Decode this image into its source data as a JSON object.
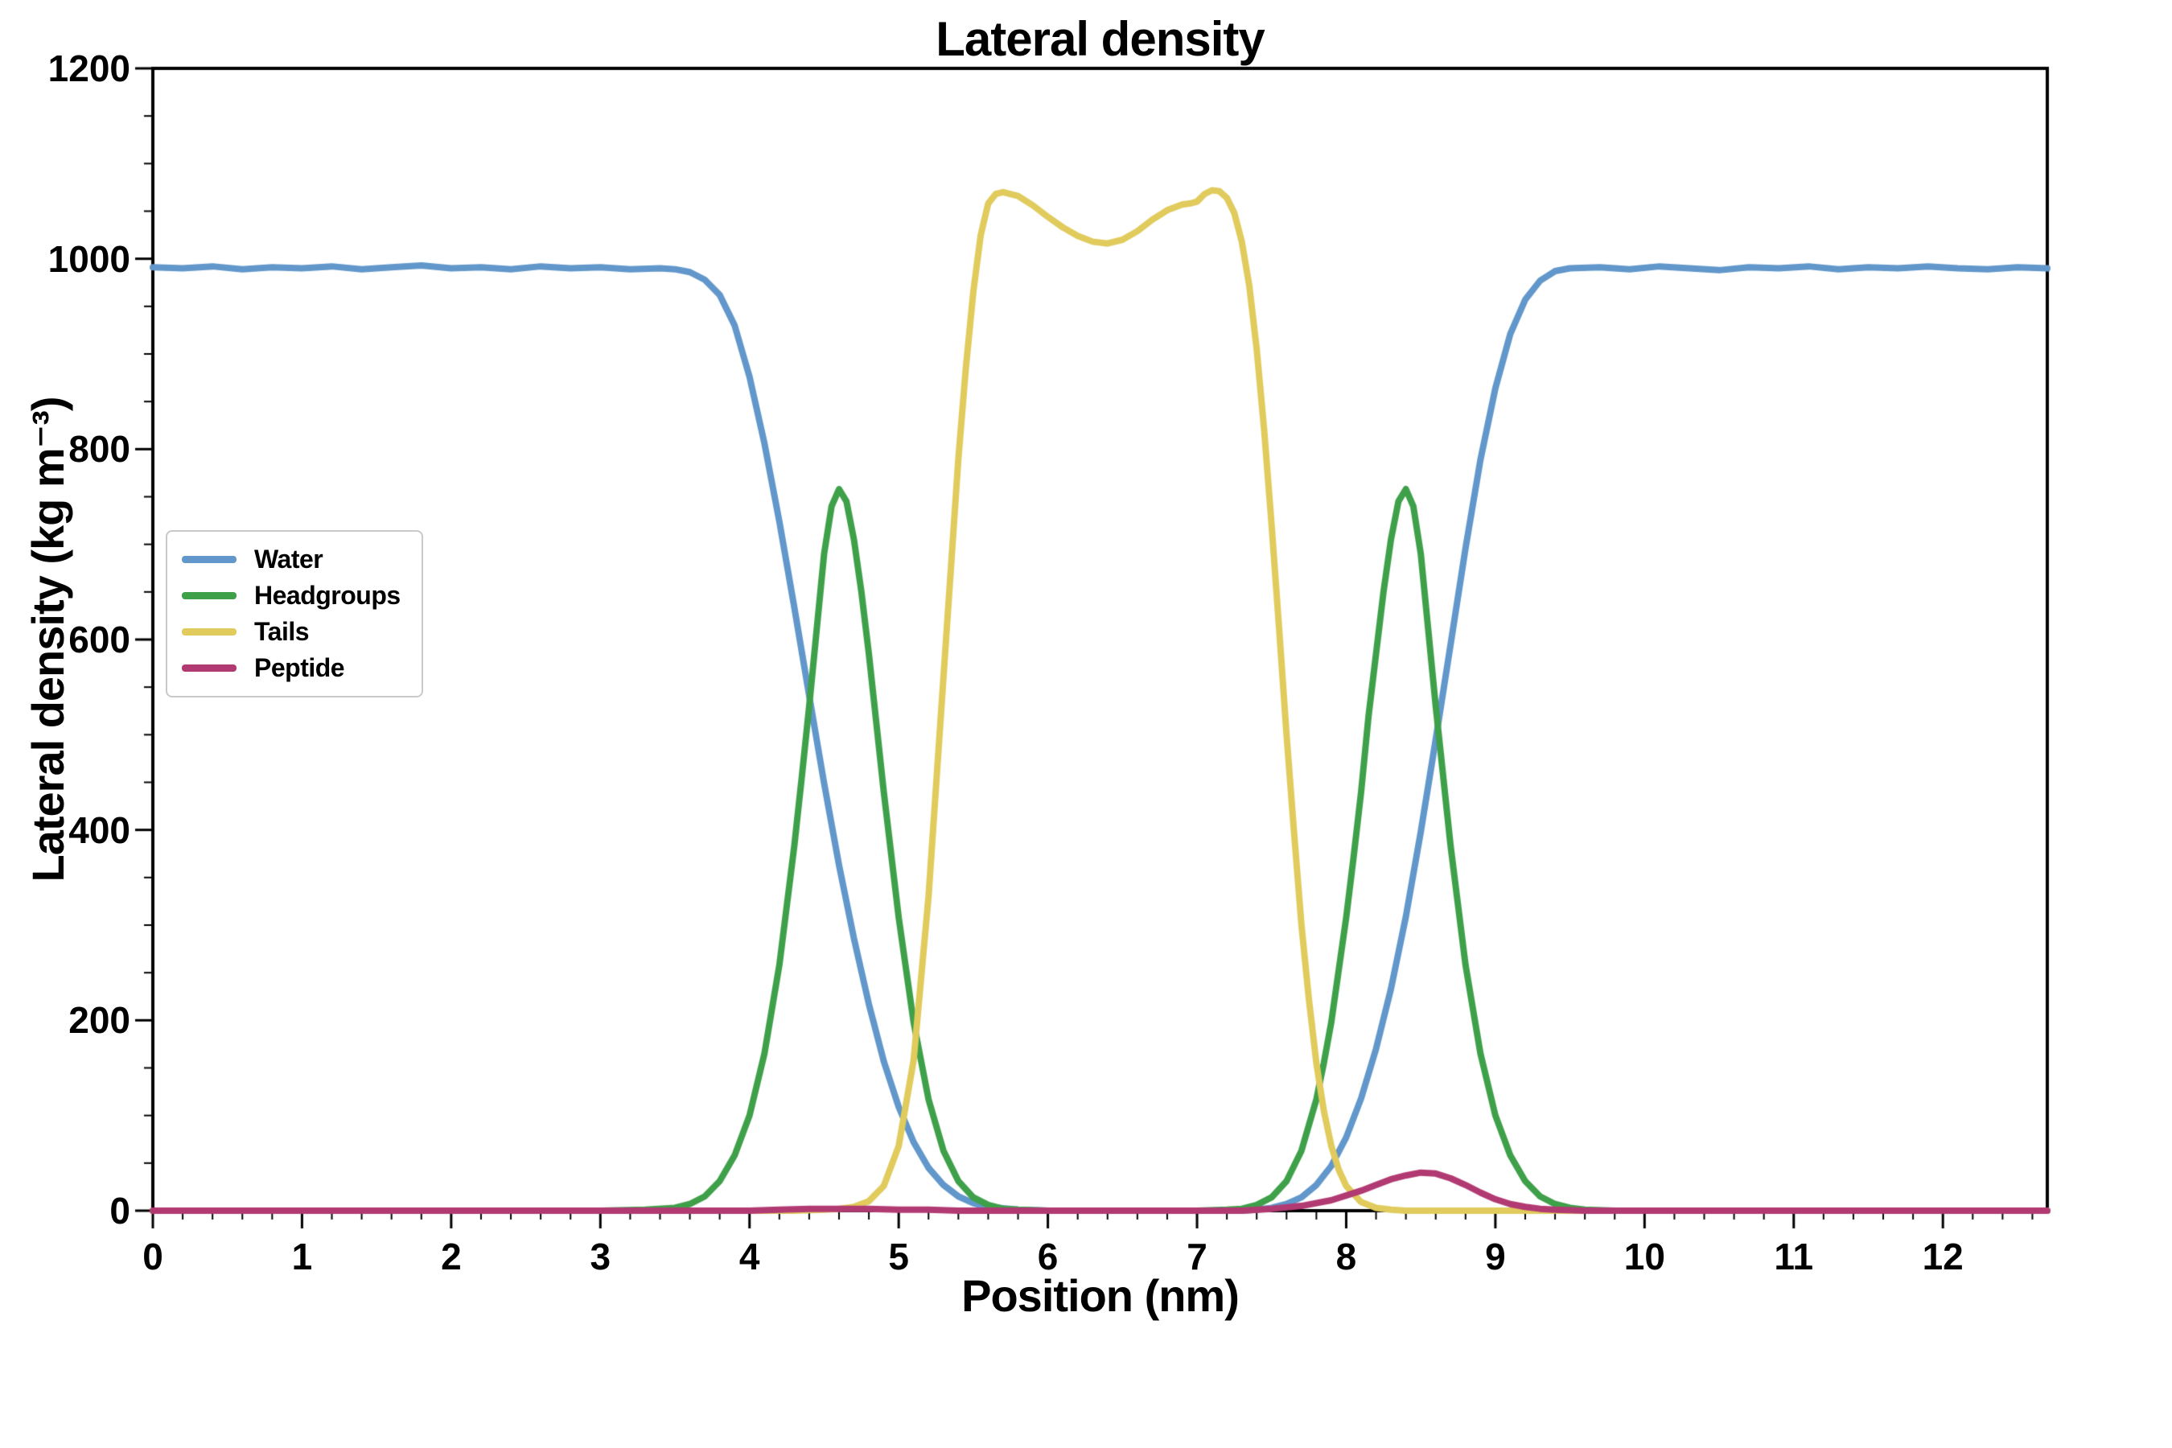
{
  "chart_data": {
    "type": "line",
    "title": "Lateral density",
    "xlabel": "Position (nm)",
    "ylabel": "Lateral density (kg m⁻³)",
    "xlim": [
      0,
      12.7
    ],
    "ylim": [
      0,
      1200
    ],
    "x_major_ticks": [
      0,
      1,
      2,
      3,
      4,
      5,
      6,
      7,
      8,
      9,
      10,
      11,
      12
    ],
    "y_major_ticks": [
      0,
      200,
      400,
      600,
      800,
      1000,
      1200
    ],
    "x_minor_step": 0.2,
    "y_minor_step": 50,
    "grid": false,
    "legend_position": "lower-left",
    "frame_color": "#000000",
    "series": [
      {
        "name": "Water",
        "color": "#6197ca",
        "points": [
          [
            0,
            991
          ],
          [
            0.2,
            990
          ],
          [
            0.4,
            992
          ],
          [
            0.6,
            989
          ],
          [
            0.8,
            991
          ],
          [
            1.0,
            990
          ],
          [
            1.2,
            992
          ],
          [
            1.4,
            989
          ],
          [
            1.6,
            991
          ],
          [
            1.8,
            993
          ],
          [
            2.0,
            990
          ],
          [
            2.2,
            991
          ],
          [
            2.4,
            989
          ],
          [
            2.6,
            992
          ],
          [
            2.8,
            990
          ],
          [
            3.0,
            991
          ],
          [
            3.2,
            989
          ],
          [
            3.4,
            990
          ],
          [
            3.5,
            989
          ],
          [
            3.6,
            986
          ],
          [
            3.7,
            978
          ],
          [
            3.8,
            962
          ],
          [
            3.9,
            930
          ],
          [
            4.0,
            876
          ],
          [
            4.1,
            806
          ],
          [
            4.2,
            724
          ],
          [
            4.3,
            634
          ],
          [
            4.4,
            541
          ],
          [
            4.5,
            449
          ],
          [
            4.6,
            363
          ],
          [
            4.7,
            286
          ],
          [
            4.8,
            217
          ],
          [
            4.9,
            157
          ],
          [
            5.0,
            109
          ],
          [
            5.1,
            72
          ],
          [
            5.2,
            45
          ],
          [
            5.3,
            27
          ],
          [
            5.4,
            15
          ],
          [
            5.5,
            8
          ],
          [
            5.6,
            4
          ],
          [
            5.8,
            1
          ],
          [
            6.0,
            0
          ],
          [
            6.5,
            0
          ],
          [
            7.0,
            0
          ],
          [
            7.3,
            0
          ],
          [
            7.4,
            1
          ],
          [
            7.5,
            3
          ],
          [
            7.6,
            7
          ],
          [
            7.7,
            14
          ],
          [
            7.8,
            27
          ],
          [
            7.9,
            47
          ],
          [
            8.0,
            77
          ],
          [
            8.1,
            118
          ],
          [
            8.2,
            170
          ],
          [
            8.3,
            233
          ],
          [
            8.4,
            309
          ],
          [
            8.5,
            398
          ],
          [
            8.6,
            495
          ],
          [
            8.7,
            595
          ],
          [
            8.8,
            696
          ],
          [
            8.9,
            789
          ],
          [
            9.0,
            864
          ],
          [
            9.1,
            921
          ],
          [
            9.2,
            957
          ],
          [
            9.3,
            977
          ],
          [
            9.4,
            987
          ],
          [
            9.5,
            990
          ],
          [
            9.7,
            991
          ],
          [
            9.9,
            989
          ],
          [
            10.1,
            992
          ],
          [
            10.3,
            990
          ],
          [
            10.5,
            988
          ],
          [
            10.7,
            991
          ],
          [
            10.9,
            990
          ],
          [
            11.1,
            992
          ],
          [
            11.3,
            989
          ],
          [
            11.5,
            991
          ],
          [
            11.7,
            990
          ],
          [
            11.9,
            992
          ],
          [
            12.1,
            990
          ],
          [
            12.3,
            989
          ],
          [
            12.5,
            991
          ],
          [
            12.7,
            990
          ]
        ]
      },
      {
        "name": "Headgroups",
        "color": "#3fa04a",
        "points": [
          [
            0,
            0
          ],
          [
            1,
            0
          ],
          [
            2,
            0
          ],
          [
            3,
            0
          ],
          [
            3.3,
            1
          ],
          [
            3.5,
            3
          ],
          [
            3.6,
            7
          ],
          [
            3.7,
            15
          ],
          [
            3.8,
            31
          ],
          [
            3.9,
            58
          ],
          [
            4.0,
            100
          ],
          [
            4.1,
            165
          ],
          [
            4.2,
            258
          ],
          [
            4.3,
            383
          ],
          [
            4.35,
            455
          ],
          [
            4.4,
            530
          ],
          [
            4.45,
            610
          ],
          [
            4.5,
            690
          ],
          [
            4.55,
            740
          ],
          [
            4.6,
            758
          ],
          [
            4.65,
            745
          ],
          [
            4.7,
            705
          ],
          [
            4.75,
            650
          ],
          [
            4.8,
            585
          ],
          [
            4.9,
            440
          ],
          [
            5.0,
            308
          ],
          [
            5.1,
            198
          ],
          [
            5.2,
            117
          ],
          [
            5.3,
            63
          ],
          [
            5.4,
            31
          ],
          [
            5.5,
            14
          ],
          [
            5.6,
            6
          ],
          [
            5.7,
            2
          ],
          [
            5.8,
            1
          ],
          [
            6.0,
            0
          ],
          [
            6.5,
            0
          ],
          [
            7.0,
            0
          ],
          [
            7.2,
            1
          ],
          [
            7.3,
            2
          ],
          [
            7.4,
            6
          ],
          [
            7.5,
            14
          ],
          [
            7.6,
            31
          ],
          [
            7.7,
            63
          ],
          [
            7.8,
            117
          ],
          [
            7.85,
            155
          ],
          [
            7.9,
            198
          ],
          [
            8.0,
            308
          ],
          [
            8.05,
            372
          ],
          [
            8.1,
            440
          ],
          [
            8.15,
            520
          ],
          [
            8.2,
            585
          ],
          [
            8.25,
            650
          ],
          [
            8.3,
            705
          ],
          [
            8.35,
            745
          ],
          [
            8.4,
            758
          ],
          [
            8.45,
            740
          ],
          [
            8.5,
            690
          ],
          [
            8.55,
            610
          ],
          [
            8.6,
            530
          ],
          [
            8.7,
            383
          ],
          [
            8.8,
            258
          ],
          [
            8.9,
            165
          ],
          [
            9.0,
            100
          ],
          [
            9.1,
            58
          ],
          [
            9.2,
            31
          ],
          [
            9.3,
            15
          ],
          [
            9.4,
            7
          ],
          [
            9.5,
            3
          ],
          [
            9.6,
            1
          ],
          [
            9.8,
            0
          ],
          [
            10.5,
            0
          ],
          [
            11.5,
            0
          ],
          [
            12.7,
            0
          ]
        ]
      },
      {
        "name": "Tails",
        "color": "#e0cb5c",
        "points": [
          [
            0,
            0
          ],
          [
            1,
            0
          ],
          [
            2,
            0
          ],
          [
            3,
            0
          ],
          [
            4,
            0
          ],
          [
            4.3,
            0
          ],
          [
            4.5,
            1
          ],
          [
            4.6,
            2
          ],
          [
            4.7,
            4
          ],
          [
            4.8,
            10
          ],
          [
            4.9,
            26
          ],
          [
            5.0,
            68
          ],
          [
            5.1,
            158
          ],
          [
            5.2,
            330
          ],
          [
            5.3,
            560
          ],
          [
            5.35,
            675
          ],
          [
            5.4,
            790
          ],
          [
            5.45,
            885
          ],
          [
            5.5,
            965
          ],
          [
            5.55,
            1025
          ],
          [
            5.6,
            1058
          ],
          [
            5.65,
            1068
          ],
          [
            5.7,
            1070
          ],
          [
            5.8,
            1066
          ],
          [
            5.9,
            1056
          ],
          [
            6.0,
            1044
          ],
          [
            6.1,
            1033
          ],
          [
            6.2,
            1024
          ],
          [
            6.3,
            1018
          ],
          [
            6.4,
            1016
          ],
          [
            6.5,
            1020
          ],
          [
            6.6,
            1029
          ],
          [
            6.7,
            1041
          ],
          [
            6.8,
            1051
          ],
          [
            6.9,
            1057
          ],
          [
            6.95,
            1058
          ],
          [
            7.0,
            1060
          ],
          [
            7.05,
            1068
          ],
          [
            7.1,
            1072
          ],
          [
            7.15,
            1071
          ],
          [
            7.2,
            1064
          ],
          [
            7.25,
            1048
          ],
          [
            7.3,
            1018
          ],
          [
            7.35,
            972
          ],
          [
            7.4,
            905
          ],
          [
            7.45,
            820
          ],
          [
            7.5,
            720
          ],
          [
            7.55,
            612
          ],
          [
            7.6,
            500
          ],
          [
            7.65,
            398
          ],
          [
            7.7,
            300
          ],
          [
            7.75,
            222
          ],
          [
            7.8,
            155
          ],
          [
            7.85,
            105
          ],
          [
            7.9,
            68
          ],
          [
            7.95,
            43
          ],
          [
            8.0,
            26
          ],
          [
            8.1,
            9
          ],
          [
            8.2,
            3
          ],
          [
            8.3,
            1
          ],
          [
            8.4,
            0
          ],
          [
            9,
            0
          ],
          [
            10,
            0
          ],
          [
            11,
            0
          ],
          [
            12,
            0
          ],
          [
            12.7,
            0
          ]
        ]
      },
      {
        "name": "Peptide",
        "color": "#b23a73",
        "points": [
          [
            0,
            0
          ],
          [
            1,
            0
          ],
          [
            2,
            0
          ],
          [
            3,
            0
          ],
          [
            4,
            0
          ],
          [
            4.2,
            1
          ],
          [
            4.4,
            2
          ],
          [
            4.6,
            2
          ],
          [
            4.8,
            2
          ],
          [
            5.0,
            1
          ],
          [
            5.2,
            1
          ],
          [
            5.4,
            0
          ],
          [
            6,
            0
          ],
          [
            6.5,
            0
          ],
          [
            7,
            0
          ],
          [
            7.3,
            0
          ],
          [
            7.5,
            2
          ],
          [
            7.7,
            5
          ],
          [
            7.9,
            11
          ],
          [
            8.0,
            16
          ],
          [
            8.1,
            21
          ],
          [
            8.2,
            27
          ],
          [
            8.3,
            33
          ],
          [
            8.4,
            37
          ],
          [
            8.5,
            40
          ],
          [
            8.6,
            39
          ],
          [
            8.7,
            34
          ],
          [
            8.8,
            27
          ],
          [
            8.9,
            19
          ],
          [
            9.0,
            12
          ],
          [
            9.1,
            7
          ],
          [
            9.2,
            4
          ],
          [
            9.3,
            2
          ],
          [
            9.4,
            1
          ],
          [
            9.6,
            0
          ],
          [
            10,
            0
          ],
          [
            11,
            0
          ],
          [
            12,
            0
          ],
          [
            12.7,
            0
          ]
        ]
      }
    ]
  }
}
